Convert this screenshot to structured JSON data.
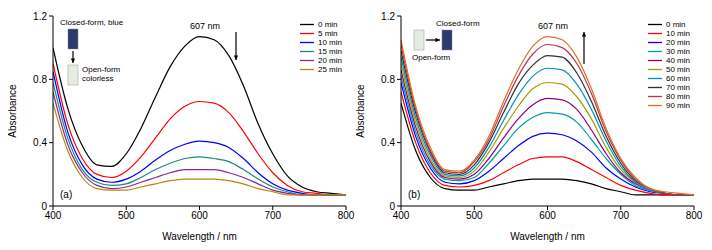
{
  "chart_data": [
    {
      "type": "line",
      "title": "(a)",
      "x_label": "Wavelength / nm",
      "y_label": "Absorbance",
      "annotations": [
        "607 nm",
        "Closed-form, blue",
        "Open-form",
        "colorless"
      ],
      "xlim": [
        400,
        800
      ],
      "ylim": [
        0,
        1.2
      ],
      "xticks": [
        400,
        500,
        600,
        700,
        800
      ],
      "yticks": [
        0,
        0.4,
        0.8,
        1.2
      ],
      "x": [
        400,
        420,
        440,
        460,
        480,
        500,
        520,
        540,
        560,
        580,
        600,
        620,
        640,
        660,
        680,
        700,
        720,
        740,
        760,
        780,
        800
      ],
      "series": [
        {
          "name": "0 min",
          "color": "#000000",
          "values": [
            1.0,
            0.62,
            0.38,
            0.26,
            0.25,
            0.33,
            0.49,
            0.69,
            0.88,
            1.01,
            1.07,
            1.05,
            0.95,
            0.76,
            0.52,
            0.33,
            0.19,
            0.12,
            0.09,
            0.08,
            0.07
          ]
        },
        {
          "name": "5 min",
          "color": "#ff0000",
          "values": [
            0.9,
            0.52,
            0.3,
            0.2,
            0.18,
            0.22,
            0.31,
            0.43,
            0.55,
            0.63,
            0.66,
            0.65,
            0.59,
            0.47,
            0.33,
            0.21,
            0.13,
            0.09,
            0.08,
            0.07,
            0.07
          ]
        },
        {
          "name": "10 min",
          "color": "#0000ff",
          "values": [
            0.85,
            0.47,
            0.26,
            0.17,
            0.15,
            0.17,
            0.22,
            0.29,
            0.35,
            0.39,
            0.41,
            0.4,
            0.37,
            0.3,
            0.21,
            0.14,
            0.1,
            0.08,
            0.07,
            0.07,
            0.07
          ]
        },
        {
          "name": "15 min",
          "color": "#1a8c80",
          "values": [
            0.78,
            0.43,
            0.23,
            0.15,
            0.13,
            0.14,
            0.18,
            0.23,
            0.27,
            0.3,
            0.31,
            0.3,
            0.28,
            0.23,
            0.17,
            0.12,
            0.09,
            0.07,
            0.07,
            0.07,
            0.07
          ]
        },
        {
          "name": "20 min",
          "color": "#8b2a8b",
          "values": [
            0.72,
            0.39,
            0.21,
            0.13,
            0.11,
            0.12,
            0.15,
            0.18,
            0.21,
            0.23,
            0.23,
            0.23,
            0.21,
            0.18,
            0.14,
            0.1,
            0.08,
            0.07,
            0.07,
            0.07,
            0.07
          ]
        },
        {
          "name": "25 min",
          "color": "#b8860b",
          "values": [
            0.65,
            0.35,
            0.18,
            0.11,
            0.1,
            0.1,
            0.12,
            0.14,
            0.16,
            0.17,
            0.17,
            0.17,
            0.16,
            0.14,
            0.11,
            0.09,
            0.07,
            0.07,
            0.07,
            0.07,
            0.07
          ]
        }
      ]
    },
    {
      "type": "line",
      "title": "(b)",
      "x_label": "Wavelength / nm",
      "y_label": "Absorbance",
      "annotations": [
        "607 nm",
        "Open-form",
        "Closed-form"
      ],
      "xlim": [
        400,
        800
      ],
      "ylim": [
        0,
        1.2
      ],
      "xticks": [
        400,
        500,
        600,
        700,
        800
      ],
      "yticks": [
        0,
        0.4,
        0.8,
        1.2
      ],
      "x": [
        400,
        420,
        440,
        460,
        480,
        500,
        520,
        540,
        560,
        580,
        600,
        620,
        640,
        660,
        680,
        700,
        720,
        740,
        760,
        780,
        800
      ],
      "series": [
        {
          "name": "0 min",
          "color": "#000000",
          "values": [
            0.65,
            0.35,
            0.18,
            0.11,
            0.1,
            0.1,
            0.12,
            0.14,
            0.16,
            0.17,
            0.17,
            0.17,
            0.16,
            0.14,
            0.11,
            0.09,
            0.07,
            0.07,
            0.07,
            0.07,
            0.07
          ]
        },
        {
          "name": "10 min",
          "color": "#ff0000",
          "values": [
            0.72,
            0.4,
            0.21,
            0.13,
            0.12,
            0.13,
            0.16,
            0.21,
            0.26,
            0.3,
            0.31,
            0.31,
            0.28,
            0.23,
            0.18,
            0.13,
            0.1,
            0.08,
            0.07,
            0.07,
            0.07
          ]
        },
        {
          "name": "20 min",
          "color": "#0000ff",
          "values": [
            0.78,
            0.44,
            0.24,
            0.15,
            0.14,
            0.16,
            0.22,
            0.3,
            0.38,
            0.44,
            0.46,
            0.45,
            0.41,
            0.34,
            0.24,
            0.17,
            0.12,
            0.09,
            0.08,
            0.07,
            0.07
          ]
        },
        {
          "name": "30 min",
          "color": "#00a0a0",
          "values": [
            0.82,
            0.47,
            0.26,
            0.17,
            0.16,
            0.18,
            0.27,
            0.38,
            0.49,
            0.56,
            0.59,
            0.58,
            0.53,
            0.42,
            0.3,
            0.2,
            0.13,
            0.1,
            0.08,
            0.07,
            0.07
          ]
        },
        {
          "name": "40 min",
          "color": "#8b008b",
          "values": [
            0.86,
            0.5,
            0.28,
            0.18,
            0.17,
            0.2,
            0.3,
            0.43,
            0.55,
            0.64,
            0.68,
            0.67,
            0.61,
            0.48,
            0.33,
            0.21,
            0.14,
            0.1,
            0.08,
            0.07,
            0.07
          ]
        },
        {
          "name": "50 min",
          "color": "#a0a000",
          "values": [
            0.9,
            0.53,
            0.3,
            0.19,
            0.18,
            0.22,
            0.34,
            0.49,
            0.63,
            0.74,
            0.78,
            0.77,
            0.69,
            0.55,
            0.37,
            0.23,
            0.15,
            0.1,
            0.08,
            0.07,
            0.07
          ]
        },
        {
          "name": "60 min",
          "color": "#0090c0",
          "values": [
            0.94,
            0.56,
            0.32,
            0.2,
            0.19,
            0.24,
            0.37,
            0.54,
            0.7,
            0.82,
            0.87,
            0.86,
            0.77,
            0.61,
            0.41,
            0.25,
            0.15,
            0.1,
            0.08,
            0.07,
            0.07
          ]
        },
        {
          "name": "70 min",
          "color": "#303030",
          "values": [
            0.98,
            0.59,
            0.34,
            0.21,
            0.2,
            0.26,
            0.4,
            0.59,
            0.77,
            0.89,
            0.95,
            0.94,
            0.84,
            0.66,
            0.44,
            0.27,
            0.16,
            0.11,
            0.08,
            0.07,
            0.07
          ]
        },
        {
          "name": "80 min",
          "color": "#c03050",
          "values": [
            1.02,
            0.61,
            0.35,
            0.22,
            0.21,
            0.28,
            0.42,
            0.63,
            0.82,
            0.96,
            1.02,
            1.0,
            0.9,
            0.71,
            0.47,
            0.29,
            0.17,
            0.11,
            0.08,
            0.07,
            0.07
          ]
        },
        {
          "name": "90 min",
          "color": "#e07020",
          "values": [
            1.05,
            0.63,
            0.37,
            0.23,
            0.22,
            0.29,
            0.44,
            0.66,
            0.86,
            1.01,
            1.07,
            1.05,
            0.94,
            0.74,
            0.49,
            0.3,
            0.18,
            0.11,
            0.09,
            0.08,
            0.07
          ]
        }
      ]
    }
  ]
}
